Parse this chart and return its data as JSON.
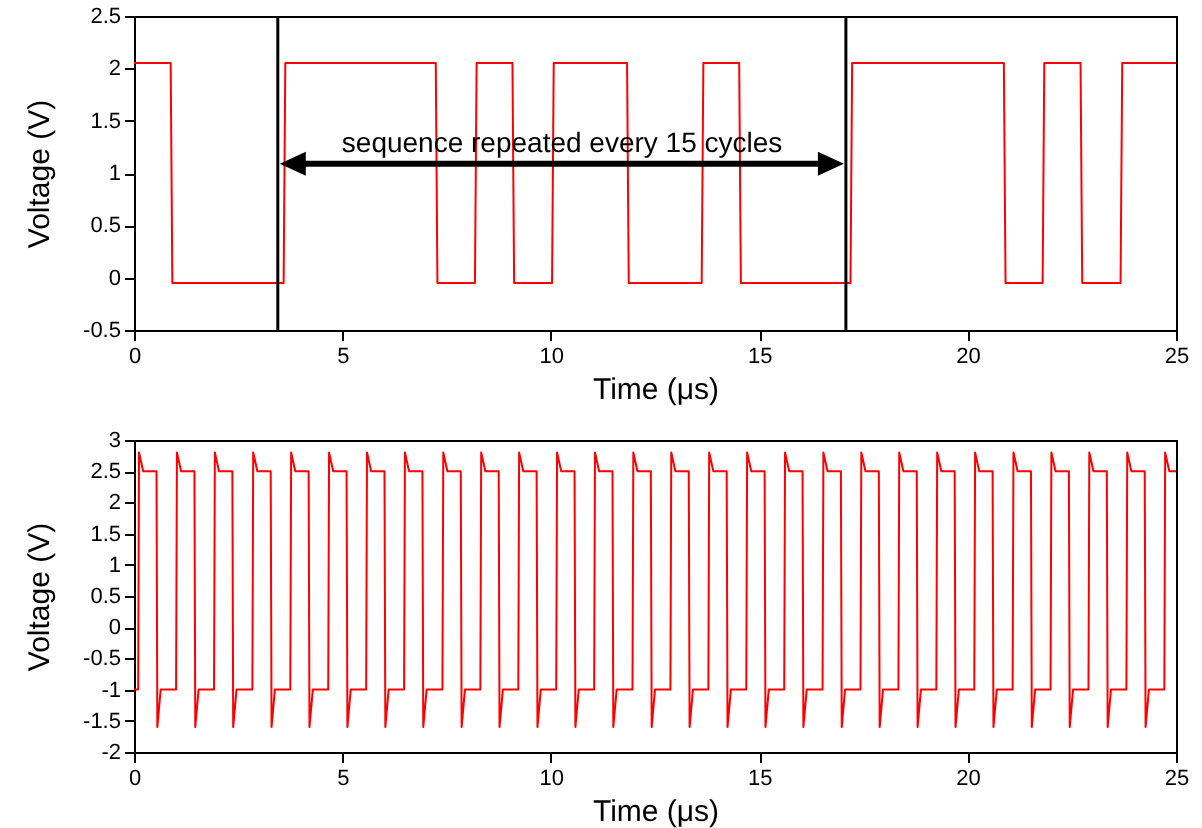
{
  "chart_data": [
    {
      "type": "line",
      "xlabel": "Time (μs)",
      "ylabel": "Voltage (V)",
      "xlim": [
        0,
        25
      ],
      "xticks": [
        0,
        5,
        10,
        15,
        20,
        25
      ],
      "ylim": [
        -0.5,
        2.5
      ],
      "yticks": [
        -0.5,
        0,
        0.5,
        1,
        1.5,
        2,
        2.5
      ],
      "grid": false,
      "legend": false,
      "series": [
        {
          "color": "#ff0000",
          "x": [
            0,
            0.88,
            0.92,
            3.59,
            3.63,
            7.24,
            7.28,
            8.18,
            8.22,
            9.08,
            9.12,
            10.03,
            10.07,
            11.83,
            11.87,
            13.62,
            13.66,
            14.52,
            14.56,
            17.19,
            17.23,
            20.87,
            20.91,
            21.8,
            21.84,
            22.71,
            22.75,
            23.67,
            23.71,
            25
          ],
          "values": [
            2.05,
            2.05,
            -0.05,
            -0.05,
            2.05,
            2.05,
            -0.05,
            -0.05,
            2.05,
            2.05,
            -0.05,
            -0.05,
            2.05,
            2.05,
            -0.05,
            -0.05,
            2.05,
            2.05,
            -0.05,
            -0.05,
            2.05,
            2.05,
            -0.05,
            -0.05,
            2.05,
            2.05,
            -0.05,
            -0.05,
            2.05,
            2.05
          ]
        }
      ],
      "ref_lines": [
        {
          "axis": "x",
          "value": 3.45,
          "color": "#000000"
        },
        {
          "axis": "x",
          "value": 17.08,
          "color": "#000000"
        }
      ],
      "annotations": [
        {
          "text": "sequence repeated every 15 cycles",
          "x": 10.27,
          "y": 1.28
        }
      ]
    },
    {
      "type": "line",
      "xlabel": "Time (μs)",
      "ylabel": "Voltage (V)",
      "xlim": [
        0,
        25
      ],
      "xticks": [
        0,
        5,
        10,
        15,
        20,
        25
      ],
      "ylim": [
        -2,
        3
      ],
      "yticks": [
        -2,
        -1.5,
        -1,
        -0.5,
        0,
        0.5,
        1,
        1.5,
        2,
        2.5,
        3
      ],
      "grid": false,
      "legend": false,
      "series": [
        {
          "color": "#ff0000",
          "x": [
            0,
            0.1,
            0.12,
            0.22,
            0.54,
            0.56,
            0.64,
            1.01,
            1.03,
            1.13,
            1.45,
            1.47,
            1.55,
            1.92,
            1.94,
            2.04,
            2.36,
            2.38,
            2.46,
            2.84,
            2.86,
            2.96,
            3.28,
            3.3,
            3.38,
            3.75,
            3.77,
            3.87,
            4.19,
            4.21,
            4.29,
            4.66,
            4.68,
            4.78,
            5.1,
            5.12,
            5.2,
            5.57,
            5.59,
            5.69,
            6.01,
            6.03,
            6.11,
            6.48,
            6.5,
            6.6,
            6.92,
            6.94,
            7.02,
            7.4,
            7.42,
            7.52,
            7.84,
            7.86,
            7.94,
            8.31,
            8.33,
            8.43,
            8.75,
            8.77,
            8.85,
            9.22,
            9.24,
            9.34,
            9.66,
            9.68,
            9.76,
            10.13,
            10.15,
            10.25,
            10.57,
            10.59,
            10.67,
            11.04,
            11.06,
            11.16,
            11.48,
            11.5,
            11.58,
            11.96,
            11.98,
            12.08,
            12.4,
            12.42,
            12.5,
            12.87,
            12.89,
            12.99,
            13.31,
            13.33,
            13.41,
            13.78,
            13.8,
            13.9,
            14.22,
            14.24,
            14.32,
            14.69,
            14.71,
            14.81,
            15.13,
            15.15,
            15.23,
            15.6,
            15.62,
            15.72,
            16.04,
            16.06,
            16.14,
            16.52,
            16.54,
            16.64,
            16.96,
            16.98,
            17.06,
            17.43,
            17.45,
            17.55,
            17.87,
            17.89,
            17.97,
            18.34,
            18.36,
            18.46,
            18.78,
            18.8,
            18.88,
            19.25,
            19.27,
            19.37,
            19.69,
            19.71,
            19.79,
            20.16,
            20.18,
            20.28,
            20.6,
            20.62,
            20.7,
            21.08,
            21.1,
            21.2,
            21.52,
            21.54,
            21.62,
            21.99,
            22.01,
            22.11,
            22.43,
            22.45,
            22.53,
            22.9,
            22.92,
            23.02,
            23.34,
            23.36,
            23.44,
            23.81,
            23.83,
            23.93,
            24.25,
            24.27,
            24.35,
            24.72,
            24.74,
            24.84,
            25
          ],
          "values": [
            -1,
            -1,
            2.8,
            2.5,
            2.5,
            -1.6,
            -1,
            -1,
            2.8,
            2.5,
            2.5,
            -1.6,
            -1,
            -1,
            2.8,
            2.5,
            2.5,
            -1.6,
            -1,
            -1,
            2.8,
            2.5,
            2.5,
            -1.6,
            -1,
            -1,
            2.8,
            2.5,
            2.5,
            -1.6,
            -1,
            -1,
            2.8,
            2.5,
            2.5,
            -1.6,
            -1,
            -1,
            2.8,
            2.5,
            2.5,
            -1.6,
            -1,
            -1,
            2.8,
            2.5,
            2.5,
            -1.6,
            -1,
            -1,
            2.8,
            2.5,
            2.5,
            -1.6,
            -1,
            -1,
            2.8,
            2.5,
            2.5,
            -1.6,
            -1,
            -1,
            2.8,
            2.5,
            2.5,
            -1.6,
            -1,
            -1,
            2.8,
            2.5,
            2.5,
            -1.6,
            -1,
            -1,
            2.8,
            2.5,
            2.5,
            -1.6,
            -1,
            -1,
            2.8,
            2.5,
            2.5,
            -1.6,
            -1,
            -1,
            2.8,
            2.5,
            2.5,
            -1.6,
            -1,
            -1,
            2.8,
            2.5,
            2.5,
            -1.6,
            -1,
            -1,
            2.8,
            2.5,
            2.5,
            -1.6,
            -1,
            -1,
            2.8,
            2.5,
            2.5,
            -1.6,
            -1,
            -1,
            2.8,
            2.5,
            2.5,
            -1.6,
            -1,
            -1,
            2.8,
            2.5,
            2.5,
            -1.6,
            -1,
            -1,
            2.8,
            2.5,
            2.5,
            -1.6,
            -1,
            -1,
            2.8,
            2.5,
            2.5,
            -1.6,
            -1,
            -1,
            2.8,
            2.5,
            2.5,
            -1.6,
            -1,
            -1,
            2.8,
            2.5,
            2.5,
            -1.6,
            -1,
            -1,
            2.8,
            2.5,
            2.5,
            -1.6,
            -1,
            -1,
            2.8,
            2.5,
            2.5,
            -1.6,
            -1,
            -1,
            2.8,
            2.5,
            2.5,
            -1.6,
            -1,
            -1,
            2.8,
            2.5,
            2.5
          ]
        }
      ]
    }
  ]
}
